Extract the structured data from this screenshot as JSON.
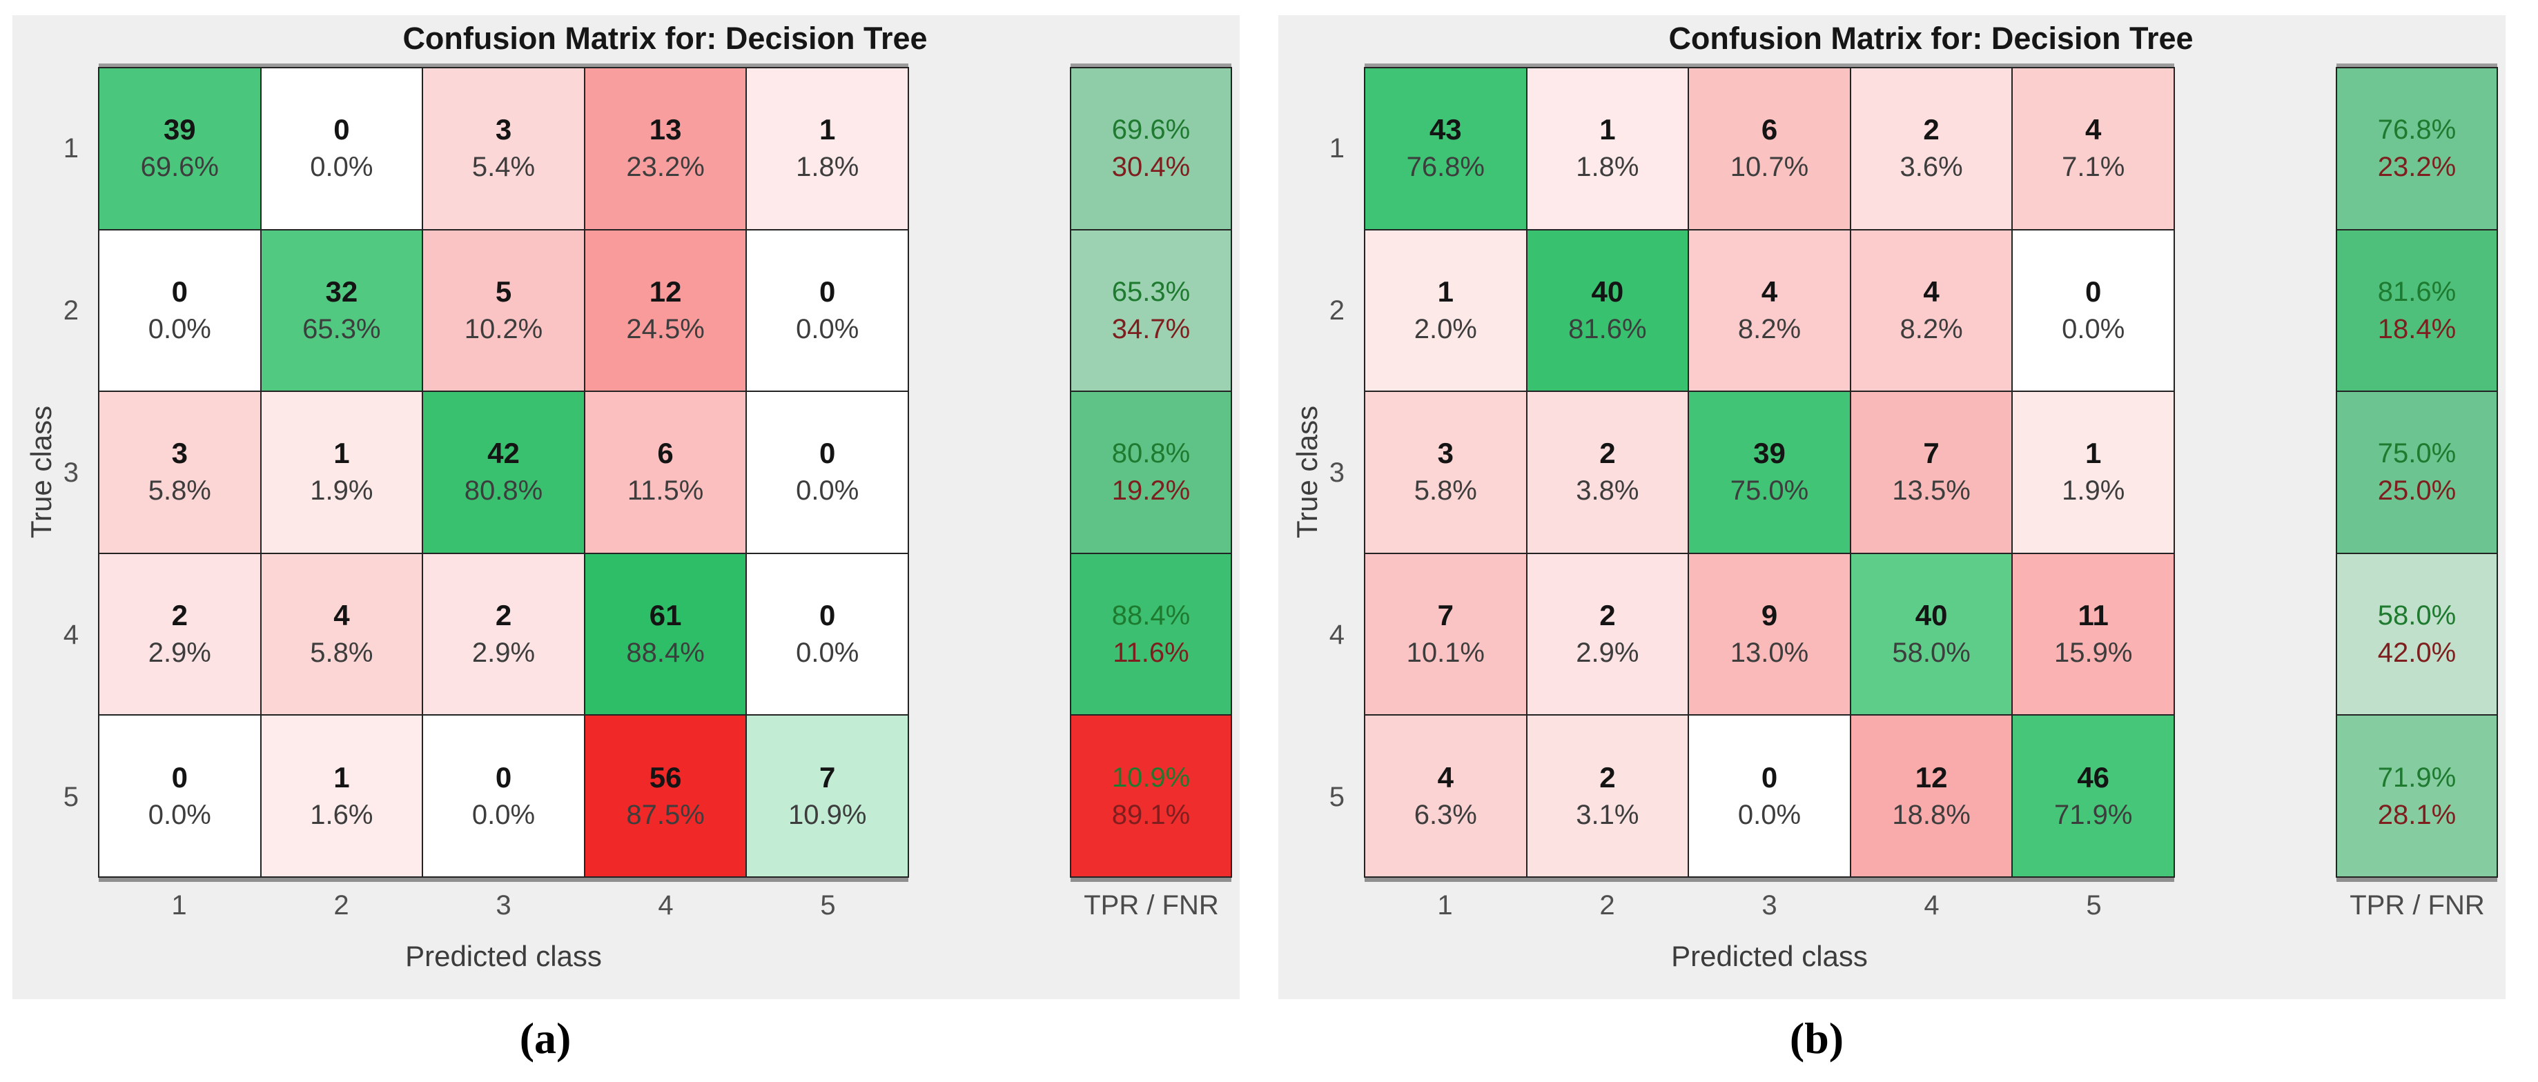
{
  "colors": {
    "diagonal_green": "#1EB95C",
    "off_diagonal_red": "#F01616",
    "panel_bg": "#EFEFEF",
    "tpr_text_green": "#1E7A2E",
    "fnr_text_red": "#7E1E1E"
  },
  "chart_data": [
    {
      "type": "heatmap",
      "title": "Confusion Matrix for: Decision Tree",
      "xlabel": "Predicted class",
      "ylabel": "True class",
      "summary_label": "TPR / FNR",
      "caption": "(a)",
      "x_ticks": [
        "1",
        "2",
        "3",
        "4",
        "5"
      ],
      "y_ticks": [
        "1",
        "2",
        "3",
        "4",
        "5"
      ],
      "counts": [
        [
          39,
          0,
          3,
          13,
          1
        ],
        [
          0,
          32,
          5,
          12,
          0
        ],
        [
          3,
          1,
          42,
          6,
          0
        ],
        [
          2,
          4,
          2,
          61,
          0
        ],
        [
          0,
          1,
          0,
          56,
          7
        ]
      ],
      "row_pct": [
        [
          69.6,
          0.0,
          5.4,
          23.2,
          1.8
        ],
        [
          0.0,
          65.3,
          10.2,
          24.5,
          0.0
        ],
        [
          5.8,
          1.9,
          80.8,
          11.5,
          0.0
        ],
        [
          2.9,
          5.8,
          2.9,
          88.4,
          0.0
        ],
        [
          0.0,
          1.6,
          0.0,
          87.5,
          10.9
        ]
      ],
      "tpr": [
        69.6,
        65.3,
        80.8,
        88.4,
        10.9
      ],
      "fnr": [
        30.4,
        34.7,
        19.2,
        11.6,
        89.1
      ],
      "tpr_cell_bg": [
        "#8FCCA8",
        "#9CD2B2",
        "#5FC287",
        "#3CBF70",
        "#F02D2D"
      ]
    },
    {
      "type": "heatmap",
      "title": "Confusion Matrix for: Decision Tree",
      "xlabel": "Predicted class",
      "ylabel": "True class",
      "summary_label": "TPR / FNR",
      "caption": "(b)",
      "x_ticks": [
        "1",
        "2",
        "3",
        "4",
        "5"
      ],
      "y_ticks": [
        "1",
        "2",
        "3",
        "4",
        "5"
      ],
      "counts": [
        [
          43,
          1,
          6,
          2,
          4
        ],
        [
          1,
          40,
          4,
          4,
          0
        ],
        [
          3,
          2,
          39,
          7,
          1
        ],
        [
          7,
          2,
          9,
          40,
          11
        ],
        [
          4,
          2,
          0,
          12,
          46
        ]
      ],
      "row_pct": [
        [
          76.8,
          1.8,
          10.7,
          3.6,
          7.1
        ],
        [
          2.0,
          81.6,
          8.2,
          8.2,
          0.0
        ],
        [
          5.8,
          3.8,
          75.0,
          13.5,
          1.9
        ],
        [
          10.1,
          2.9,
          13.0,
          58.0,
          15.9
        ],
        [
          6.3,
          3.1,
          0.0,
          18.8,
          71.9
        ]
      ],
      "tpr": [
        76.8,
        81.6,
        75.0,
        58.0,
        71.9
      ],
      "fnr": [
        23.2,
        18.4,
        25.0,
        42.0,
        28.1
      ],
      "tpr_cell_bg": [
        "#6FC693",
        "#4FBF7C",
        "#6CC491",
        "#C0E0CB",
        "#85CCA0"
      ]
    }
  ]
}
